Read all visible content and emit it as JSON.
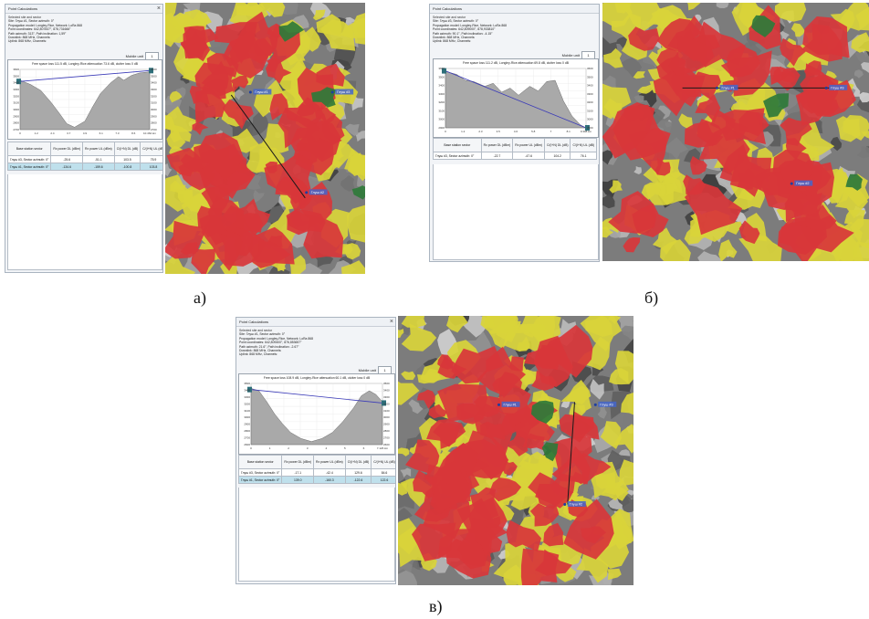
{
  "captions": {
    "a": "а)",
    "b": "б)",
    "c": "в)"
  },
  "colors": {
    "red_zone": "#d8363a",
    "yellow_zone": "#d9d43a",
    "green_zone": "#2f7a3a",
    "terrain": "#8a8a8a",
    "path_line": "#1a1a1a",
    "profile_fill": "#a9a9a9",
    "los_line": "#3b3bb8"
  },
  "panels": [
    {
      "title": "Point Calculations",
      "section": "Selected site and sector",
      "info_lines": [
        "Site: Глуш #1, Sector azimuth: 0°",
        "Propagation model: Longley-Rice, Network: LoRa 868",
        "Point coordinates: 642,807837°, 878,731666°",
        "Path azimuth: 313°, Path inclination: 1,59°",
        "Downlink: 868 MHz, Channels:",
        "Uplink: 868 MHz, Channels:"
      ],
      "mobile_unit_label": "Mobile unit",
      "mobile_unit_value": "1",
      "profile_caption": "Free space loss 111.5 dB, Longley-Rice attenuation 73.6 dB, clutter loss 0 dB",
      "left_axis": [
        "3600",
        "3500",
        "3400",
        "3300",
        "3200",
        "3100",
        "3000",
        "2900",
        "2800",
        "2700"
      ],
      "right_axis": [
        "3600",
        "3500",
        "3400",
        "3300",
        "3200",
        "3100",
        "3000",
        "2900",
        "2800",
        "2700"
      ],
      "x_axis": [
        "0",
        "1.2",
        "2.4",
        "3.7",
        "4.9",
        "6.1",
        "7.3",
        "8.6",
        "10.462 km"
      ],
      "table_headers": [
        "Base station sector",
        "Rx power DL (dBm)",
        "Rx power UL (dBm)",
        "C/(I+N) DL (dB)",
        "C/(I+N) UL (dB)"
      ],
      "rows": [
        {
          "cells": [
            "Глуш #3, Sector azimuth: 0°",
            "-25.6",
            "-51.1",
            "103.5",
            "75.9"
          ],
          "selected": false
        },
        {
          "cells": [
            "Глуш #1, Sector azimuth: 0°",
            "-134.6",
            "-159.6",
            "-100.8",
            "103.8"
          ],
          "selected": true
        }
      ],
      "map_labels": [
        "Глуш #1",
        "Глуш #3",
        "Глуш #2"
      ]
    },
    {
      "title": "Point Calculations",
      "section": "Selected site and sector",
      "info_lines": [
        "Site: Глуш #3, Sector azimuth: 0°",
        "Propagation model: Longley-Rice, Network: LoRa 868",
        "Point coordinates: 642,809000°, 878,933810°",
        "Path azimuth: 90.1°, Path inclination: -4.15°",
        "Downlink: 868 MHz, Channels:",
        "Uplink: 868 MHz, Channels:"
      ],
      "mobile_unit_label": "Mobile unit",
      "mobile_unit_value": "1",
      "profile_caption": "Free space loss 111.2 dB, Longley-Rice attenuation 69.8 dB, clutter loss 0 dB",
      "left_axis": [
        "3600",
        "3500",
        "3400",
        "3300",
        "3200",
        "3100",
        "3000",
        "2900"
      ],
      "right_axis": [
        "3600",
        "3500",
        "3400",
        "3300",
        "3200",
        "3100",
        "3000",
        "2900"
      ],
      "x_axis": [
        "0",
        "1.2",
        "2.3",
        "3.5",
        "4.6",
        "5.8",
        "7",
        "8.1",
        "9.308 km"
      ],
      "table_headers": [
        "Base station sector",
        "Rx power DL (dBm)",
        "Rx power UL (dBm)",
        "C/(I+N) DL (dB)",
        "C/(I+N) UL (dB)"
      ],
      "rows": [
        {
          "cells": [
            "Глуш #3, Sector azimuth: 0°",
            "-22.7",
            "-47.6",
            "104.2",
            "76.1"
          ],
          "selected": false
        }
      ],
      "map_labels": [
        "Глуш #1",
        "Глуш #3",
        "Глуш #2"
      ]
    },
    {
      "title": "Point Calculations",
      "section": "Selected site and sector",
      "info_lines": [
        "Site: Глуш #1, Sector azimuth: 0°",
        "Propagation model: Longley-Rice, Network: LoRa 868",
        "Point coordinates: 642,809400°, 876,853657°",
        "Path azimuth: 21.6°, Path inclination: -2.67°",
        "Downlink: 868 MHz, Channels:",
        "Uplink: 868 MHz, Channels:"
      ],
      "mobile_unit_label": "Mobile unit",
      "mobile_unit_value": "1",
      "profile_caption": "Free space loss 108.9 dB, Longley-Rice attenuation 60.1 dB, clutter loss 0 dB",
      "left_axis": [
        "3500",
        "3400",
        "3300",
        "3200",
        "3100",
        "3000",
        "2900",
        "2800",
        "2700",
        "2600"
      ],
      "right_axis": [
        "3500",
        "3400",
        "3300",
        "3200",
        "3100",
        "3000",
        "2900",
        "2800",
        "2700",
        "2600"
      ],
      "x_axis": [
        "0",
        "1",
        "2",
        "3",
        "4",
        "5",
        "6",
        "7.126 km"
      ],
      "table_headers": [
        "Base station sector",
        "Rx power DL (dBm)",
        "Rx power UL (dBm)",
        "C/(I+N) DL (dB)",
        "C/(I+N) UL (dB)"
      ],
      "rows": [
        {
          "cells": [
            "Глуш #3, Sector azimuth: 0°",
            "-17.1",
            "-42.4",
            "129.6",
            "84.6"
          ],
          "selected": false
        },
        {
          "cells": [
            "Глуш #1, Sector azimuth: 0°",
            "139.0",
            "-160.3",
            "-122.6",
            "122.6"
          ],
          "selected": true
        }
      ],
      "map_labels": [
        "Глуш #1",
        "Глуш #3",
        "Глуш #2"
      ]
    }
  ]
}
